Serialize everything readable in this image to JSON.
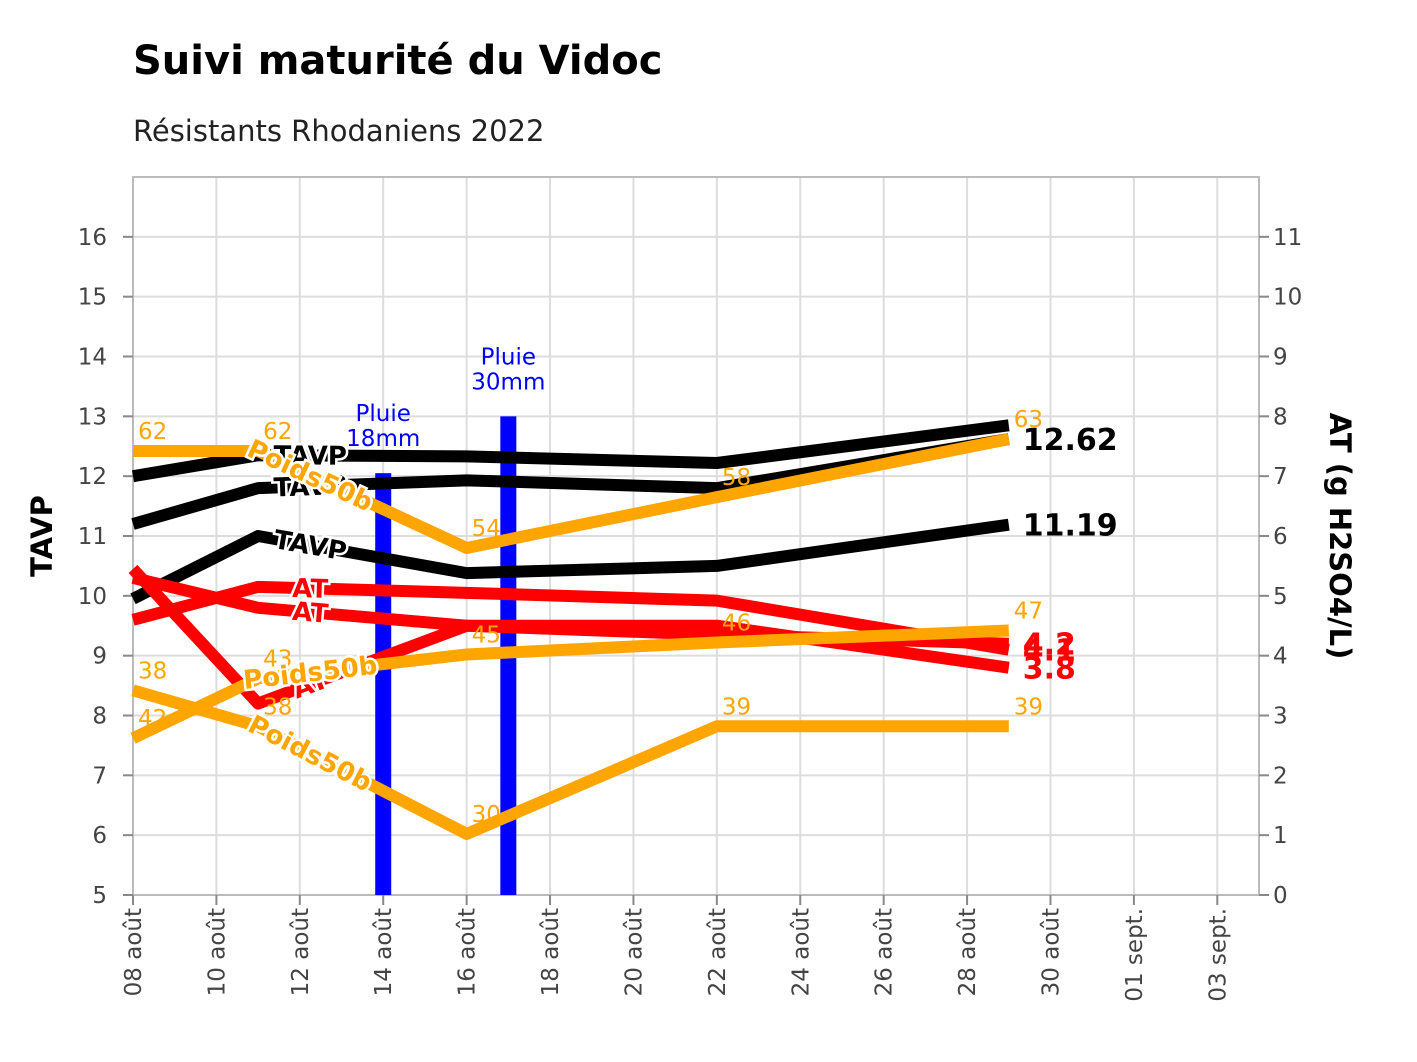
{
  "chart_data": {
    "type": "line",
    "title": "Suivi maturité du Vidoc",
    "subtitle": "Résistants Rhodaniens 2022",
    "ylabel": "TAVP",
    "y2label": "AT (g H2SO4/L)",
    "xlim": [
      "2022-08-08",
      "2022-09-04"
    ],
    "ylim": [
      5,
      17
    ],
    "y2lim": [
      0,
      12
    ],
    "x_tick_labels": [
      "08 août",
      "10 août",
      "12 août",
      "14 août",
      "16 août",
      "18 août",
      "20 août",
      "22 août",
      "24 août",
      "26 août",
      "28 août",
      "30 août",
      "01 sept.",
      "03 sept."
    ],
    "y_ticks": [
      5,
      6,
      7,
      8,
      9,
      10,
      11,
      12,
      13,
      14,
      15,
      16
    ],
    "y2_ticks": [
      0,
      1,
      2,
      3,
      4,
      5,
      6,
      7,
      8,
      9,
      10,
      11
    ],
    "grid": true,
    "colors": {
      "tavp": "#000000",
      "at": "#ff0000",
      "poids": "#ffa500",
      "rain": "#0000ff"
    },
    "series": [
      {
        "name": "TAVP",
        "axis": "left",
        "color": "#000000",
        "x": [
          "2022-08-08",
          "2022-08-11",
          "2022-08-16",
          "2022-08-22",
          "2022-08-29"
        ],
        "y": [
          12.0,
          12.35,
          12.33,
          12.22,
          12.85
        ],
        "inline_label": "TAVP",
        "end_label": "",
        "data_labels": [
          "",
          "",
          "",
          "",
          ""
        ]
      },
      {
        "name": "TAVP",
        "axis": "left",
        "color": "#000000",
        "x": [
          "2022-08-08",
          "2022-08-11",
          "2022-08-16",
          "2022-08-22",
          "2022-08-29"
        ],
        "y": [
          11.2,
          11.8,
          11.93,
          11.8,
          12.62
        ],
        "inline_label": "TAVP",
        "end_label": "12.62",
        "data_labels": [
          "",
          "",
          "",
          "",
          ""
        ]
      },
      {
        "name": "TAVP",
        "axis": "left",
        "color": "#000000",
        "x": [
          "2022-08-08",
          "2022-08-11",
          "2022-08-16",
          "2022-08-22",
          "2022-08-29"
        ],
        "y": [
          9.95,
          11.0,
          10.38,
          10.5,
          11.19
        ],
        "inline_label": "TAVP",
        "end_label": "11.19",
        "data_labels": [
          "",
          "",
          "",
          "",
          ""
        ]
      },
      {
        "name": "AT",
        "axis": "right",
        "color": "#ff0000",
        "x": [
          "2022-08-08",
          "2022-08-11",
          "2022-08-16",
          "2022-08-22",
          "2022-08-29"
        ],
        "y": [
          4.6,
          5.15,
          5.05,
          4.92,
          4.1
        ],
        "inline_label": "AT",
        "end_label": "4.1",
        "data_labels": [
          "",
          "",
          "",
          "",
          ""
        ]
      },
      {
        "name": "AT",
        "axis": "right",
        "color": "#ff0000",
        "x": [
          "2022-08-08",
          "2022-08-11",
          "2022-08-16",
          "2022-08-22",
          "2022-08-29"
        ],
        "y": [
          5.3,
          4.8,
          4.5,
          4.35,
          4.2
        ],
        "inline_label": "AT",
        "end_label": "4.2",
        "data_labels": [
          "",
          "",
          "",
          "",
          ""
        ]
      },
      {
        "name": "AT",
        "axis": "right",
        "color": "#ff0000",
        "x": [
          "2022-08-08",
          "2022-08-11",
          "2022-08-16",
          "2022-08-22",
          "2022-08-29"
        ],
        "y": [
          5.45,
          3.2,
          4.5,
          4.5,
          3.8
        ],
        "inline_label": "AT",
        "end_label": "3.8",
        "data_labels": [
          "",
          "",
          "",
          "",
          ""
        ]
      },
      {
        "name": "Poids50b",
        "axis": "left",
        "color": "#ffa500",
        "x": [
          "2022-08-08",
          "2022-08-11",
          "2022-08-16",
          "2022-08-22",
          "2022-08-29"
        ],
        "y": [
          12.42,
          12.42,
          10.8,
          11.65,
          12.62
        ],
        "inline_label": "Poids50b",
        "end_label": "",
        "data_labels": [
          "62",
          "62",
          "54",
          "58",
          "63"
        ]
      },
      {
        "name": "Poids50b",
        "axis": "left",
        "color": "#ffa500",
        "x": [
          "2022-08-08",
          "2022-08-11",
          "2022-08-16",
          "2022-08-22",
          "2022-08-29"
        ],
        "y": [
          7.62,
          8.62,
          9.02,
          9.22,
          9.42
        ],
        "inline_label": "Poids50b",
        "end_label": "",
        "data_labels": [
          "42",
          "43",
          "45",
          "46",
          "47"
        ]
      },
      {
        "name": "Poids50b",
        "axis": "left",
        "color": "#ffa500",
        "x": [
          "2022-08-08",
          "2022-08-11",
          "2022-08-16",
          "2022-08-22",
          "2022-08-29"
        ],
        "y": [
          8.42,
          7.82,
          6.02,
          7.82,
          7.82
        ],
        "inline_label": "Poids50b",
        "end_label": "",
        "data_labels": [
          "38",
          "38",
          "30",
          "39",
          "39"
        ]
      }
    ],
    "rain": [
      {
        "x": "2022-08-14",
        "value": 7.05,
        "label": "Pluie\n18mm"
      },
      {
        "x": "2022-08-17",
        "value": 8.0,
        "label": "Pluie\n30mm"
      }
    ]
  }
}
